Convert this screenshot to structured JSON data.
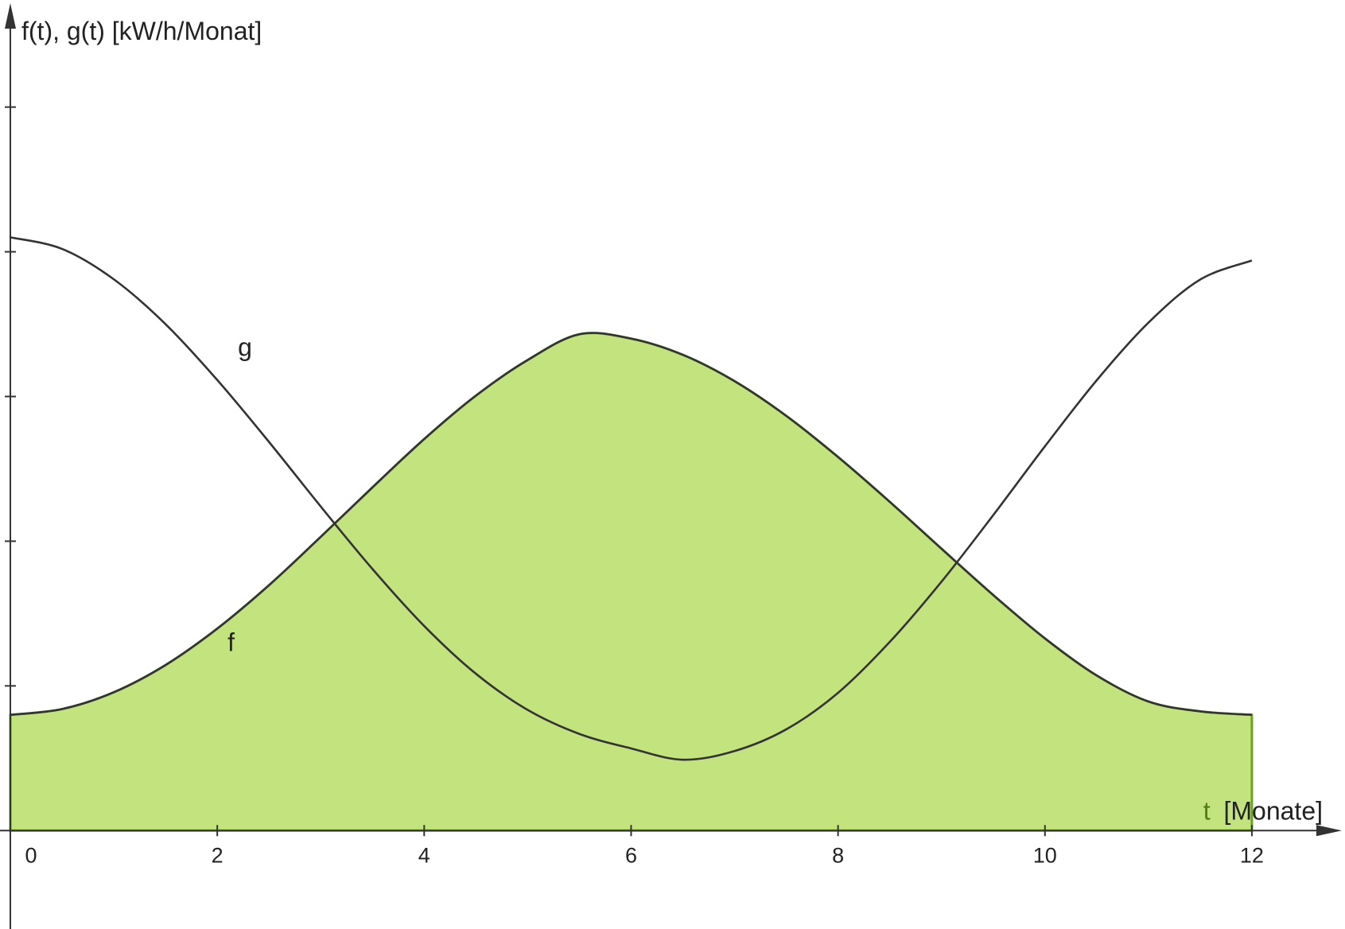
{
  "chart_data": {
    "type": "line",
    "ylabel": "f(t), g(t) [kW/h/Monat]",
    "xlabel_var": "t",
    "xlabel_unit": "[Monate]",
    "x_ticks": [
      "0",
      "2",
      "4",
      "6",
      "8",
      "10",
      "12"
    ],
    "y_ticks": [
      "0",
      "500",
      "1000",
      "1500",
      "2000",
      "2500"
    ],
    "xlim": [
      -0.1,
      12.9
    ],
    "ylim": [
      -340,
      2870
    ],
    "grid": false,
    "colors": {
      "fill": "#c2e37d",
      "fill_edge": "#6aa321",
      "curve": "#333333",
      "axis": "#333333",
      "t_label": "#4e7d12"
    },
    "series": [
      {
        "name": "f",
        "label_at": [
          2.1,
          620
        ],
        "filled": true,
        "x": [
          0,
          0.5,
          1,
          1.5,
          2,
          2.5,
          3,
          3.5,
          4,
          4.5,
          5,
          5.5,
          6,
          6.5,
          7,
          7.5,
          8,
          8.5,
          9,
          9.5,
          10,
          10.5,
          11,
          11.5,
          12
        ],
        "y": [
          400,
          420,
          478,
          572,
          698,
          848,
          1015,
          1186,
          1353,
          1503,
          1626,
          1715,
          1700,
          1644,
          1553,
          1433,
          1291,
          1136,
          974,
          814,
          664,
          536,
          446,
          412,
          400
        ]
      },
      {
        "name": "g",
        "label_at": [
          2.2,
          1640
        ],
        "filled": false,
        "x": [
          0,
          0.5,
          1,
          1.5,
          2,
          2.5,
          3,
          3.5,
          4,
          4.5,
          5,
          5.5,
          6,
          6.5,
          7,
          7.5,
          8,
          8.5,
          9,
          9.5,
          10,
          10.5,
          11,
          11.5,
          12
        ],
        "y": [
          2050,
          2010,
          1905,
          1750,
          1557,
          1343,
          1120,
          904,
          707,
          542,
          417,
          334,
          284,
          245,
          275,
          350,
          476,
          652,
          860,
          1090,
          1328,
          1556,
          1755,
          1904,
          1970
        ]
      }
    ]
  }
}
